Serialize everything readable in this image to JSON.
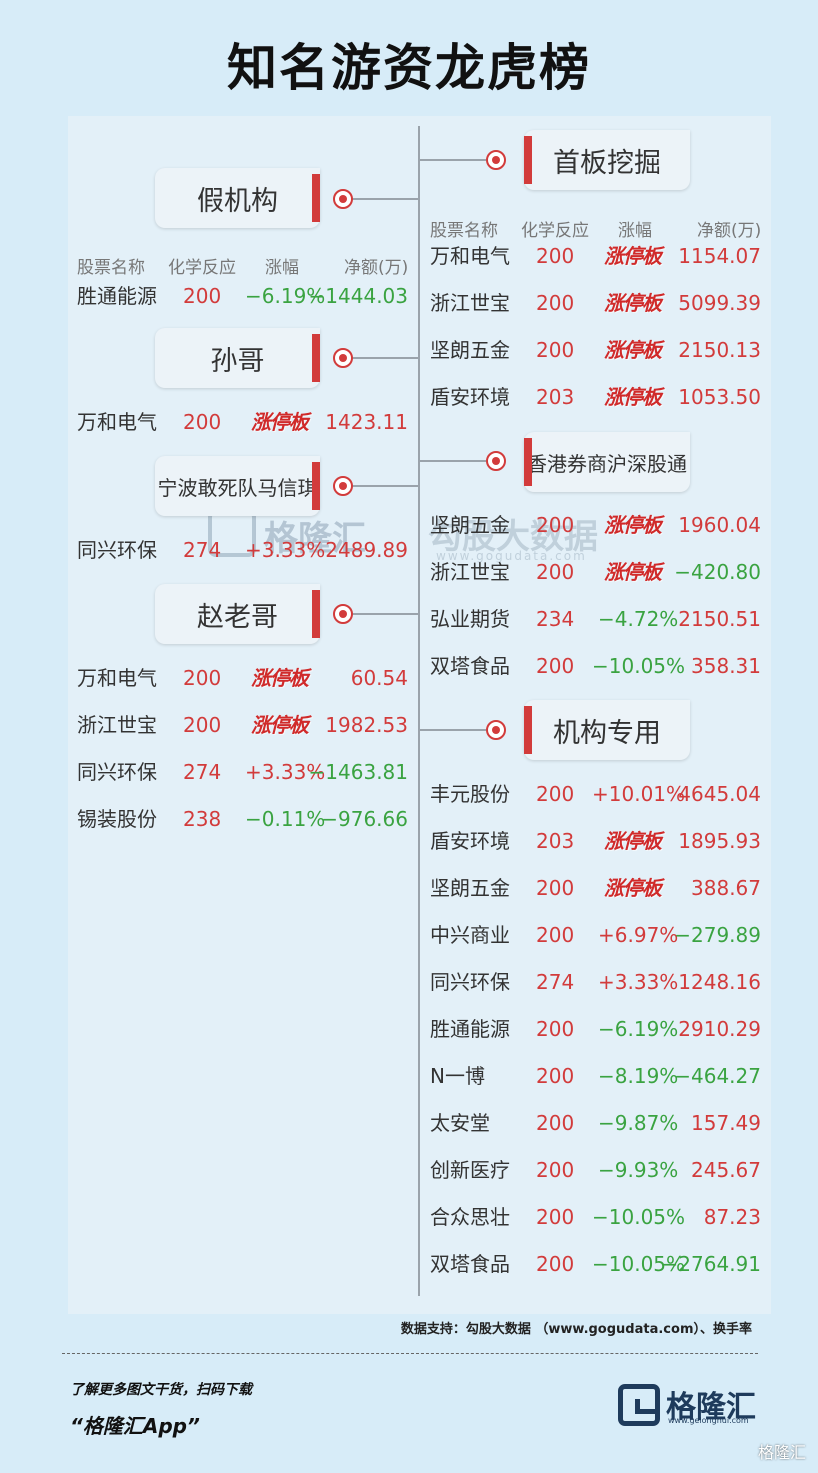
{
  "title": "知名游资龙虎榜",
  "headers": {
    "name": "股票名称",
    "reason": "化学反应",
    "change": "涨幅",
    "amount": "净额(万)"
  },
  "limit_up_label": "涨停板",
  "left_sections": [
    {
      "tag": "假机构",
      "rows": [
        {
          "name": "胜通能源",
          "code": "200",
          "change": "−6.19%",
          "dir": "down",
          "amount": "−1444.03",
          "sign": "neg"
        }
      ]
    },
    {
      "tag": "孙哥",
      "rows": [
        {
          "name": "万和电气",
          "code": "200",
          "change": "涨停板",
          "dir": "limit",
          "amount": "1423.11",
          "sign": "pos"
        }
      ]
    },
    {
      "tag": "宁波敢死队马信琪",
      "rows": [
        {
          "name": "同兴环保",
          "code": "274",
          "change": "+3.33%",
          "dir": "up",
          "amount": "2489.89",
          "sign": "pos"
        }
      ]
    },
    {
      "tag": "赵老哥",
      "rows": [
        {
          "name": "万和电气",
          "code": "200",
          "change": "涨停板",
          "dir": "limit",
          "amount": "60.54",
          "sign": "pos"
        },
        {
          "name": "浙江世宝",
          "code": "200",
          "change": "涨停板",
          "dir": "limit",
          "amount": "1982.53",
          "sign": "pos"
        },
        {
          "name": "同兴环保",
          "code": "274",
          "change": "+3.33%",
          "dir": "up",
          "amount": "−1463.81",
          "sign": "neg"
        },
        {
          "name": "锡装股份",
          "code": "238",
          "change": "−0.11%",
          "dir": "down",
          "amount": "−976.66",
          "sign": "neg"
        }
      ]
    }
  ],
  "right_sections": [
    {
      "tag": "首板挖掘",
      "rows": [
        {
          "name": "万和电气",
          "code": "200",
          "change": "涨停板",
          "dir": "limit",
          "amount": "1154.07",
          "sign": "pos"
        },
        {
          "name": "浙江世宝",
          "code": "200",
          "change": "涨停板",
          "dir": "limit",
          "amount": "5099.39",
          "sign": "pos"
        },
        {
          "name": "坚朗五金",
          "code": "200",
          "change": "涨停板",
          "dir": "limit",
          "amount": "2150.13",
          "sign": "pos"
        },
        {
          "name": "盾安环境",
          "code": "203",
          "change": "涨停板",
          "dir": "limit",
          "amount": "1053.50",
          "sign": "pos"
        }
      ]
    },
    {
      "tag": "香港券商沪深股通",
      "rows": [
        {
          "name": "坚朗五金",
          "code": "200",
          "change": "涨停板",
          "dir": "limit",
          "amount": "1960.04",
          "sign": "pos"
        },
        {
          "name": "浙江世宝",
          "code": "200",
          "change": "涨停板",
          "dir": "limit",
          "amount": "−420.80",
          "sign": "neg"
        },
        {
          "name": "弘业期货",
          "code": "234",
          "change": "−4.72%",
          "dir": "down",
          "amount": "2150.51",
          "sign": "pos"
        },
        {
          "name": "双塔食品",
          "code": "200",
          "change": "−10.05%",
          "dir": "down",
          "amount": "358.31",
          "sign": "pos"
        }
      ]
    },
    {
      "tag": "机构专用",
      "rows": [
        {
          "name": "丰元股份",
          "code": "200",
          "change": "+10.01%",
          "dir": "up",
          "amount": "4645.04",
          "sign": "pos"
        },
        {
          "name": "盾安环境",
          "code": "203",
          "change": "涨停板",
          "dir": "limit",
          "amount": "1895.93",
          "sign": "pos"
        },
        {
          "name": "坚朗五金",
          "code": "200",
          "change": "涨停板",
          "dir": "limit",
          "amount": "388.67",
          "sign": "pos"
        },
        {
          "name": "中兴商业",
          "code": "200",
          "change": "+6.97%",
          "dir": "up",
          "amount": "−279.89",
          "sign": "neg"
        },
        {
          "name": "同兴环保",
          "code": "274",
          "change": "+3.33%",
          "dir": "up",
          "amount": "1248.16",
          "sign": "pos"
        },
        {
          "name": "胜通能源",
          "code": "200",
          "change": "−6.19%",
          "dir": "down",
          "amount": "2910.29",
          "sign": "pos"
        },
        {
          "name": "N一博",
          "code": "200",
          "change": "−8.19%",
          "dir": "down",
          "amount": "−464.27",
          "sign": "neg"
        },
        {
          "name": "太安堂",
          "code": "200",
          "change": "−9.87%",
          "dir": "down",
          "amount": "157.49",
          "sign": "pos"
        },
        {
          "name": "创新医疗",
          "code": "200",
          "change": "−9.93%",
          "dir": "down",
          "amount": "245.67",
          "sign": "pos"
        },
        {
          "name": "合众思壮",
          "code": "200",
          "change": "−10.05%",
          "dir": "down",
          "amount": "87.23",
          "sign": "pos"
        },
        {
          "name": "双塔食品",
          "code": "200",
          "change": "−10.05%",
          "dir": "down",
          "amount": "−2764.91",
          "sign": "neg"
        }
      ]
    }
  ],
  "watermark": {
    "brand": "格隆汇",
    "data_brand": "勾股大数据",
    "url": "www.gogudata.com"
  },
  "source": "数据支持：勾股大数据 （www.gogudata.com）、换手率",
  "footer": {
    "line1": "了解更多图文干货，扫码下载",
    "line2": "“格隆汇App”",
    "brand_name": "格隆汇",
    "brand_url": "www.gelonghui.com",
    "corner": "格隆汇"
  },
  "colors": {
    "red": "#d23b3b",
    "green": "#3aa341",
    "background": "#d7ecf8"
  }
}
